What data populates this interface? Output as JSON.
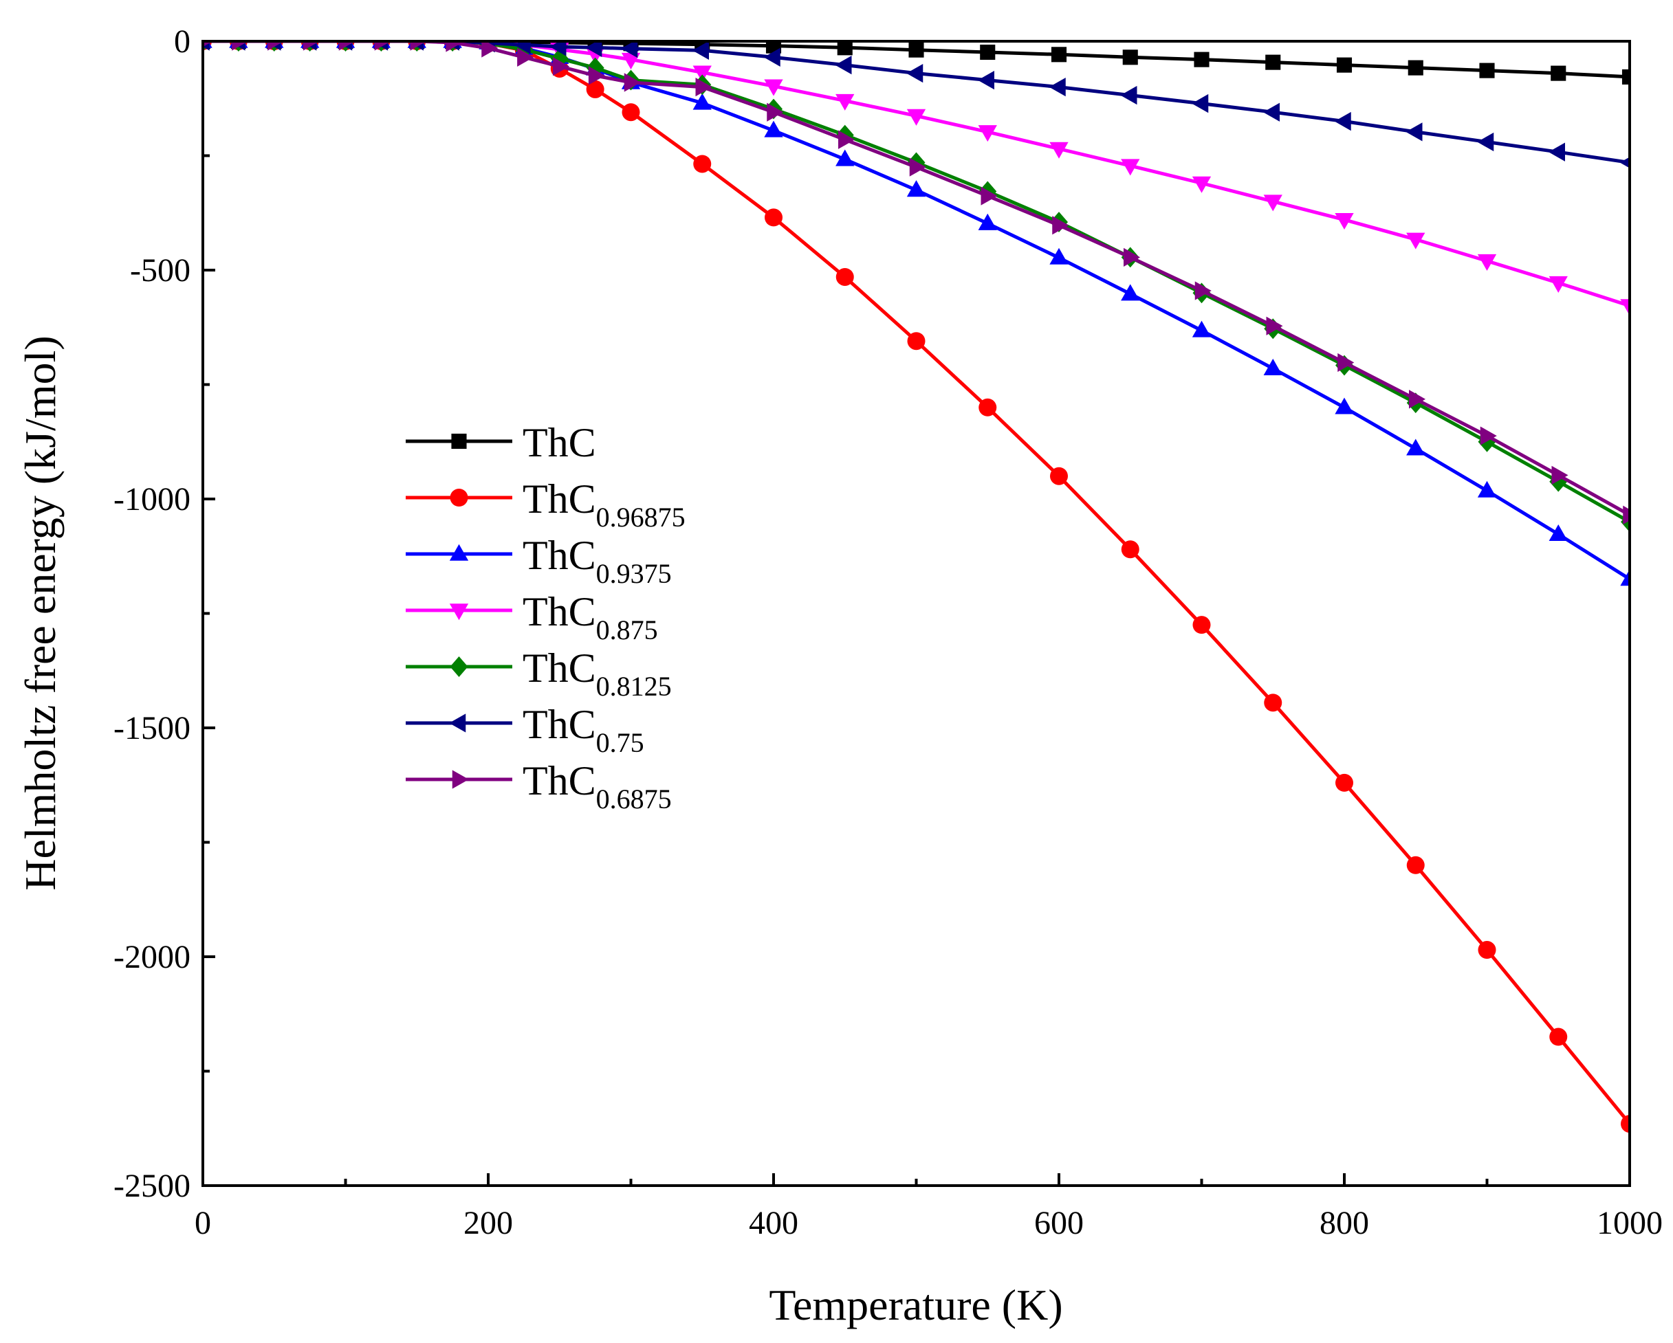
{
  "chart_data": {
    "type": "line",
    "title": "",
    "xlabel": "Temperature (K)",
    "ylabel": "Helmholtz free energy (kJ/mol)",
    "xlim": [
      0,
      1000
    ],
    "ylim": [
      -2500,
      0
    ],
    "xticks": [
      0,
      200,
      400,
      600,
      800,
      1000
    ],
    "yticks": [
      0,
      -500,
      -1000,
      -1500,
      -2000,
      -2500
    ],
    "x": [
      0,
      25,
      50,
      75,
      100,
      125,
      150,
      175,
      200,
      225,
      250,
      275,
      300,
      350,
      400,
      450,
      500,
      550,
      600,
      650,
      700,
      750,
      800,
      850,
      900,
      950,
      1000
    ],
    "legend_position": "center-left",
    "series": [
      {
        "name": "ThC",
        "base": "ThC",
        "sub": "",
        "color": "#000000",
        "marker": "square",
        "values": [
          0,
          0,
          0,
          0,
          0,
          0,
          0,
          0,
          -1,
          -2,
          -3,
          -4,
          -5,
          -7,
          -10,
          -14,
          -19,
          -24,
          -29,
          -35,
          -40,
          -46,
          -52,
          -58,
          -64,
          -70,
          -78
        ]
      },
      {
        "name": "ThC0.96875",
        "base": "ThC",
        "sub": "0.96875",
        "color": "#ff0000",
        "marker": "circle",
        "values": [
          0,
          0,
          0,
          0,
          0,
          0,
          0,
          0,
          -5,
          -20,
          -60,
          -105,
          -155,
          -268,
          -385,
          -515,
          -655,
          -800,
          -950,
          -1110,
          -1275,
          -1445,
          -1620,
          -1800,
          -1985,
          -2175,
          -2365
        ]
      },
      {
        "name": "ThC0.9375",
        "base": "ThC",
        "sub": "0.9375",
        "color": "#0000ff",
        "marker": "triangle-up",
        "values": [
          0,
          0,
          0,
          0,
          0,
          0,
          0,
          0,
          -3,
          -15,
          -35,
          -60,
          -90,
          -135,
          -195,
          -258,
          -325,
          -398,
          -473,
          -552,
          -632,
          -715,
          -800,
          -890,
          -982,
          -1077,
          -1175
        ]
      },
      {
        "name": "ThC0.875",
        "base": "ThC",
        "sub": "0.875",
        "color": "#ff00ff",
        "marker": "triangle-down",
        "values": [
          0,
          0,
          0,
          0,
          0,
          0,
          0,
          0,
          -2,
          -8,
          -18,
          -28,
          -40,
          -68,
          -98,
          -130,
          -163,
          -198,
          -235,
          -272,
          -310,
          -350,
          -390,
          -433,
          -480,
          -528,
          -578
        ]
      },
      {
        "name": "ThC0.8125",
        "base": "ThC",
        "sub": "0.8125",
        "color": "#008000",
        "marker": "diamond",
        "values": [
          0,
          0,
          0,
          0,
          0,
          0,
          0,
          0,
          -5,
          -18,
          -38,
          -58,
          -85,
          -95,
          -148,
          -205,
          -265,
          -328,
          -395,
          -472,
          -550,
          -628,
          -708,
          -790,
          -875,
          -962,
          -1050
        ]
      },
      {
        "name": "ThC0.75",
        "base": "ThC",
        "sub": "0.75",
        "color": "#000080",
        "marker": "triangle-left",
        "values": [
          0,
          0,
          0,
          0,
          0,
          0,
          0,
          0,
          -4,
          -8,
          -12,
          -14,
          -16,
          -20,
          -35,
          -52,
          -70,
          -85,
          -100,
          -118,
          -136,
          -155,
          -175,
          -198,
          -220,
          -242,
          -265
        ]
      },
      {
        "name": "ThC0.6875",
        "base": "ThC",
        "sub": "0.6875",
        "color": "#800080",
        "marker": "triangle-right",
        "values": [
          0,
          0,
          0,
          0,
          0,
          0,
          0,
          -3,
          -15,
          -35,
          -55,
          -75,
          -90,
          -100,
          -155,
          -215,
          -275,
          -338,
          -402,
          -472,
          -545,
          -622,
          -702,
          -782,
          -862,
          -948,
          -1035
        ]
      }
    ]
  }
}
